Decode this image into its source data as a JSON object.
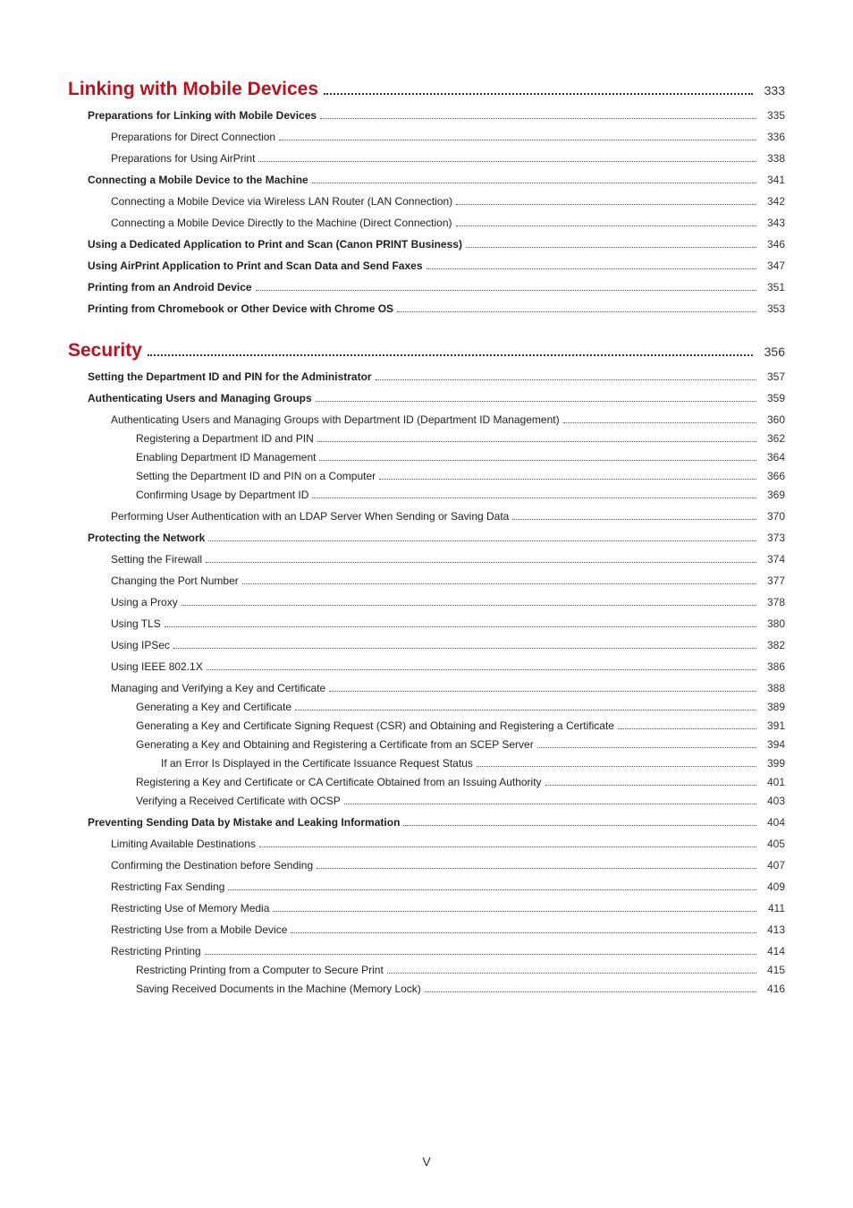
{
  "page_number_roman": "V",
  "colors": {
    "heading": "#bd1120",
    "text": "#222222",
    "page_bg": "#ffffff"
  },
  "sections": [
    {
      "title": "Linking with Mobile Devices",
      "page": "333",
      "entries": [
        {
          "level": 2,
          "bold": true,
          "text": "Preparations for Linking with Mobile Devices",
          "page": "335"
        },
        {
          "level": 3,
          "bold": false,
          "text": "Preparations for Direct Connection",
          "page": "336"
        },
        {
          "level": 3,
          "bold": false,
          "text": "Preparations for Using AirPrint",
          "page": "338"
        },
        {
          "level": 2,
          "bold": true,
          "text": "Connecting a Mobile Device to the Machine",
          "page": "341"
        },
        {
          "level": 3,
          "bold": false,
          "text": "Connecting a Mobile Device via Wireless LAN Router (LAN Connection)",
          "page": "342"
        },
        {
          "level": 3,
          "bold": false,
          "text": "Connecting a Mobile Device Directly to the Machine (Direct Connection)",
          "page": "343"
        },
        {
          "level": 2,
          "bold": true,
          "text": "Using a Dedicated Application to Print and Scan (Canon PRINT Business)",
          "page": "346"
        },
        {
          "level": 2,
          "bold": true,
          "text": "Using AirPrint Application to Print and Scan Data and Send Faxes",
          "page": "347"
        },
        {
          "level": 2,
          "bold": true,
          "text": "Printing from an Android Device",
          "page": "351"
        },
        {
          "level": 2,
          "bold": true,
          "text": "Printing from Chromebook or Other Device with Chrome OS",
          "page": "353"
        }
      ]
    },
    {
      "title": "Security",
      "page": "356",
      "entries": [
        {
          "level": 2,
          "bold": true,
          "text": "Setting the Department ID and PIN for the Administrator",
          "page": "357"
        },
        {
          "level": 2,
          "bold": true,
          "text": "Authenticating Users and Managing Groups",
          "page": "359"
        },
        {
          "level": 3,
          "bold": false,
          "text": "Authenticating Users and Managing Groups with Department ID (Department ID Management)",
          "page": "360"
        },
        {
          "level": 4,
          "bold": false,
          "text": "Registering a Department ID and PIN",
          "page": "362"
        },
        {
          "level": 4,
          "bold": false,
          "text": "Enabling Department ID Management",
          "page": "364"
        },
        {
          "level": 4,
          "bold": false,
          "text": "Setting the Department ID and PIN on a Computer",
          "page": "366"
        },
        {
          "level": 4,
          "bold": false,
          "text": "Confirming Usage by Department ID",
          "page": "369"
        },
        {
          "level": 3,
          "bold": false,
          "text": "Performing User Authentication with an LDAP Server When Sending or Saving Data",
          "page": "370"
        },
        {
          "level": 2,
          "bold": true,
          "text": "Protecting the Network",
          "page": "373"
        },
        {
          "level": 3,
          "bold": false,
          "text": "Setting the Firewall",
          "page": "374"
        },
        {
          "level": 3,
          "bold": false,
          "text": "Changing the Port Number",
          "page": "377"
        },
        {
          "level": 3,
          "bold": false,
          "text": "Using a Proxy",
          "page": "378"
        },
        {
          "level": 3,
          "bold": false,
          "text": "Using TLS",
          "page": "380"
        },
        {
          "level": 3,
          "bold": false,
          "text": "Using IPSec",
          "page": "382"
        },
        {
          "level": 3,
          "bold": false,
          "text": "Using IEEE 802.1X",
          "page": "386"
        },
        {
          "level": 3,
          "bold": false,
          "text": "Managing and Verifying a Key and Certificate",
          "page": "388"
        },
        {
          "level": 4,
          "bold": false,
          "text": "Generating a Key and Certificate",
          "page": "389"
        },
        {
          "level": 4,
          "bold": false,
          "text": "Generating a Key and Certificate Signing Request (CSR) and Obtaining and Registering a Certificate",
          "page": "391"
        },
        {
          "level": 4,
          "bold": false,
          "text": "Generating a Key and Obtaining and Registering a Certificate from an SCEP Server",
          "page": "394"
        },
        {
          "level": 5,
          "bold": false,
          "text": "If an Error Is Displayed in the Certificate Issuance Request Status",
          "page": "399"
        },
        {
          "level": 4,
          "bold": false,
          "text": "Registering a Key and Certificate or CA Certificate Obtained from an Issuing Authority",
          "page": "401"
        },
        {
          "level": 4,
          "bold": false,
          "text": "Verifying a Received Certificate with OCSP",
          "page": "403"
        },
        {
          "level": 2,
          "bold": true,
          "text": "Preventing Sending Data by Mistake and Leaking Information",
          "page": "404"
        },
        {
          "level": 3,
          "bold": false,
          "text": "Limiting Available Destinations",
          "page": "405"
        },
        {
          "level": 3,
          "bold": false,
          "text": "Confirming the Destination before Sending",
          "page": "407"
        },
        {
          "level": 3,
          "bold": false,
          "text": "Restricting Fax Sending",
          "page": "409"
        },
        {
          "level": 3,
          "bold": false,
          "text": "Restricting Use of Memory Media",
          "page": "411"
        },
        {
          "level": 3,
          "bold": false,
          "text": "Restricting Use from a Mobile Device",
          "page": "413"
        },
        {
          "level": 3,
          "bold": false,
          "text": "Restricting Printing",
          "page": "414"
        },
        {
          "level": 4,
          "bold": false,
          "text": "Restricting Printing from a Computer to Secure Print",
          "page": "415"
        },
        {
          "level": 4,
          "bold": false,
          "text": "Saving Received Documents in the Machine (Memory Lock)",
          "page": "416"
        }
      ]
    }
  ]
}
